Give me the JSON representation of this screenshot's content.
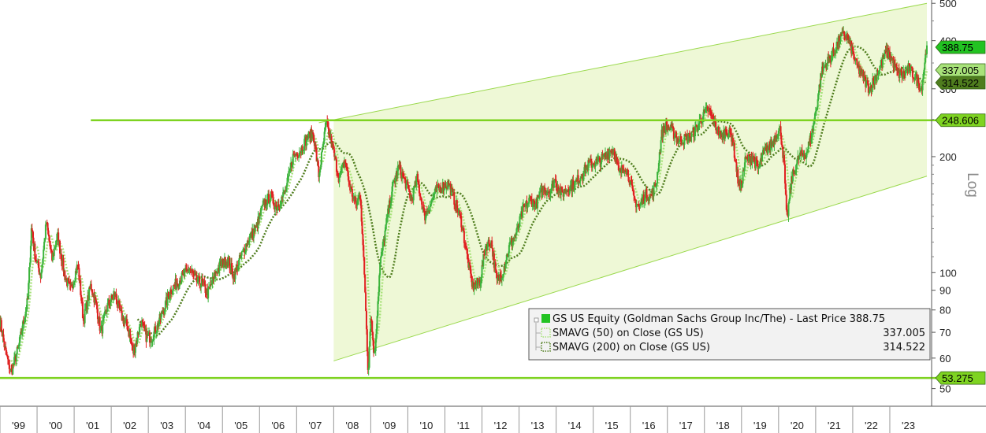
{
  "chart_data": {
    "type": "candlestick",
    "scale": "log",
    "ylabel": "Log",
    "y_ticks": [
      50,
      60,
      70,
      80,
      90,
      100,
      200,
      300,
      400,
      500
    ],
    "y_tick_labels": [
      "50",
      "60",
      "70",
      "80",
      "90",
      "100",
      "200",
      "300",
      "400",
      "500"
    ],
    "ylim": [
      45,
      510
    ],
    "x_tick_labels": [
      "'99",
      "'00",
      "'01",
      "'02",
      "'03",
      "'04",
      "'05",
      "'06",
      "'07",
      "'08",
      "'09",
      "'10",
      "'11",
      "'12",
      "'13",
      "'14",
      "'15",
      "'16",
      "'17",
      "'18",
      "'19",
      "'20",
      "'21",
      "'22",
      "'23"
    ],
    "x_range": [
      1999.0,
      2024.0
    ],
    "price_path": [
      [
        1999.0,
        75
      ],
      [
        1999.15,
        62
      ],
      [
        1999.3,
        55
      ],
      [
        1999.5,
        64
      ],
      [
        1999.75,
        85
      ],
      [
        1999.85,
        132
      ],
      [
        1999.95,
        110
      ],
      [
        2000.1,
        98
      ],
      [
        2000.25,
        135
      ],
      [
        2000.4,
        108
      ],
      [
        2000.55,
        125
      ],
      [
        2000.75,
        98
      ],
      [
        2000.9,
        90
      ],
      [
        2001.1,
        105
      ],
      [
        2001.25,
        75
      ],
      [
        2001.45,
        93
      ],
      [
        2001.6,
        82
      ],
      [
        2001.72,
        70
      ],
      [
        2001.9,
        82
      ],
      [
        2002.1,
        88
      ],
      [
        2002.25,
        78
      ],
      [
        2002.45,
        72
      ],
      [
        2002.6,
        62
      ],
      [
        2002.8,
        75
      ],
      [
        2002.95,
        68
      ],
      [
        2003.1,
        68
      ],
      [
        2003.25,
        73
      ],
      [
        2003.45,
        82
      ],
      [
        2003.6,
        90
      ],
      [
        2003.8,
        95
      ],
      [
        2003.95,
        98
      ],
      [
        2004.1,
        103
      ],
      [
        2004.3,
        95
      ],
      [
        2004.45,
        94
      ],
      [
        2004.6,
        88
      ],
      [
        2004.8,
        99
      ],
      [
        2004.95,
        105
      ],
      [
        2005.15,
        108
      ],
      [
        2005.3,
        98
      ],
      [
        2005.5,
        110
      ],
      [
        2005.7,
        122
      ],
      [
        2005.9,
        130
      ],
      [
        2006.1,
        150
      ],
      [
        2006.3,
        158
      ],
      [
        2006.45,
        148
      ],
      [
        2006.7,
        162
      ],
      [
        2006.9,
        200
      ],
      [
        2007.1,
        208
      ],
      [
        2007.3,
        225
      ],
      [
        2007.45,
        230
      ],
      [
        2007.6,
        178
      ],
      [
        2007.8,
        245
      ],
      [
        2007.95,
        215
      ],
      [
        2008.15,
        175
      ],
      [
        2008.3,
        195
      ],
      [
        2008.45,
        165
      ],
      [
        2008.6,
        150
      ],
      [
        2008.72,
        160
      ],
      [
        2008.85,
        88
      ],
      [
        2008.93,
        55
      ],
      [
        2009.0,
        78
      ],
      [
        2009.1,
        60
      ],
      [
        2009.25,
        105
      ],
      [
        2009.45,
        140
      ],
      [
        2009.6,
        168
      ],
      [
        2009.75,
        188
      ],
      [
        2009.95,
        170
      ],
      [
        2010.1,
        155
      ],
      [
        2010.25,
        175
      ],
      [
        2010.45,
        140
      ],
      [
        2010.6,
        150
      ],
      [
        2010.75,
        162
      ],
      [
        2010.95,
        168
      ],
      [
        2011.1,
        170
      ],
      [
        2011.3,
        150
      ],
      [
        2011.45,
        135
      ],
      [
        2011.6,
        110
      ],
      [
        2011.75,
        92
      ],
      [
        2011.95,
        95
      ],
      [
        2012.1,
        118
      ],
      [
        2012.25,
        120
      ],
      [
        2012.4,
        95
      ],
      [
        2012.55,
        100
      ],
      [
        2012.75,
        118
      ],
      [
        2012.95,
        128
      ],
      [
        2013.1,
        145
      ],
      [
        2013.3,
        155
      ],
      [
        2013.45,
        150
      ],
      [
        2013.65,
        165
      ],
      [
        2013.85,
        162
      ],
      [
        2013.95,
        175
      ],
      [
        2014.15,
        160
      ],
      [
        2014.3,
        165
      ],
      [
        2014.5,
        170
      ],
      [
        2014.7,
        180
      ],
      [
        2014.85,
        190
      ],
      [
        2014.95,
        192
      ],
      [
        2015.2,
        195
      ],
      [
        2015.4,
        205
      ],
      [
        2015.55,
        210
      ],
      [
        2015.7,
        180
      ],
      [
        2015.85,
        190
      ],
      [
        2015.95,
        180
      ],
      [
        2016.1,
        155
      ],
      [
        2016.25,
        148
      ],
      [
        2016.4,
        160
      ],
      [
        2016.55,
        158
      ],
      [
        2016.7,
        170
      ],
      [
        2016.85,
        230
      ],
      [
        2016.95,
        240
      ],
      [
        2017.1,
        235
      ],
      [
        2017.3,
        220
      ],
      [
        2017.45,
        222
      ],
      [
        2017.6,
        225
      ],
      [
        2017.8,
        238
      ],
      [
        2017.95,
        255
      ],
      [
        2018.1,
        265
      ],
      [
        2018.3,
        240
      ],
      [
        2018.45,
        225
      ],
      [
        2018.6,
        235
      ],
      [
        2018.75,
        225
      ],
      [
        2018.9,
        175
      ],
      [
        2018.97,
        165
      ],
      [
        2019.1,
        195
      ],
      [
        2019.3,
        200
      ],
      [
        2019.45,
        185
      ],
      [
        2019.6,
        205
      ],
      [
        2019.8,
        215
      ],
      [
        2019.95,
        230
      ],
      [
        2020.05,
        235
      ],
      [
        2020.15,
        190
      ],
      [
        2020.22,
        135
      ],
      [
        2020.35,
        175
      ],
      [
        2020.55,
        200
      ],
      [
        2020.75,
        205
      ],
      [
        2020.9,
        230
      ],
      [
        2021.05,
        280
      ],
      [
        2021.15,
        330
      ],
      [
        2021.3,
        350
      ],
      [
        2021.5,
        375
      ],
      [
        2021.65,
        405
      ],
      [
        2021.8,
        415
      ],
      [
        2021.95,
        385
      ],
      [
        2022.1,
        345
      ],
      [
        2022.25,
        325
      ],
      [
        2022.45,
        300
      ],
      [
        2022.6,
        320
      ],
      [
        2022.75,
        345
      ],
      [
        2022.9,
        375
      ],
      [
        2023.05,
        360
      ],
      [
        2023.2,
        330
      ],
      [
        2023.35,
        325
      ],
      [
        2023.5,
        340
      ],
      [
        2023.7,
        320
      ],
      [
        2023.85,
        300
      ],
      [
        2023.93,
        345
      ],
      [
        2024.0,
        388.75
      ]
    ],
    "series": [
      {
        "name": "GS US Equity (Goldman Sachs Group Inc/The) - Last Price",
        "last_value": "388.75",
        "color": "#22c322"
      },
      {
        "name": "SMAVG (50)  on Close (GS US)",
        "last_value": "337.005",
        "color": "#a8e27a"
      },
      {
        "name": "SMAVG (200)  on Close (GS US)",
        "last_value": "314.522",
        "color": "#4f7d1e"
      }
    ],
    "channel": {
      "upper": [
        [
          2007.6,
          245
        ],
        [
          2024.0,
          500
        ]
      ],
      "lower": [
        [
          2008.0,
          59
        ],
        [
          2024.0,
          178
        ]
      ],
      "shade_start": 2008.0
    },
    "horizontal_lines": [
      {
        "value": 248.606,
        "label": "248.606",
        "x_start": 2001.45
      },
      {
        "value": 53.275,
        "label": "53.275",
        "x_start": 1999.0
      }
    ],
    "price_tags": [
      {
        "value": 388.75,
        "label": "388.75",
        "bg": "#22c322"
      },
      {
        "value": 337.005,
        "label": "337.005",
        "bg": "#a8e27a"
      },
      {
        "value": 314.522,
        "label": "314.522",
        "bg": "#4f7d1e"
      },
      {
        "value": 248.606,
        "label": "248.606",
        "bg": "#7ed321"
      },
      {
        "value": 53.275,
        "label": "53.275",
        "bg": "#7ed321"
      }
    ],
    "legend": {
      "position": "bottom-right",
      "entries": [
        {
          "marker": "solid",
          "text": "GS US Equity (Goldman Sachs Group Inc/The) - Last Price 388.75",
          "value": ""
        },
        {
          "marker": "dotted-light",
          "text": "SMAVG (50)  on Close (GS US)",
          "value": "337.005"
        },
        {
          "marker": "dotted-dark",
          "text": "SMAVG (200)  on Close (GS US)",
          "value": "314.522"
        }
      ]
    },
    "up_color": "#3cb43c",
    "down_color": "#e02020",
    "channel_fill": "#eef8d6",
    "channel_line": "#9bd94e",
    "support_line": "#7ed321"
  }
}
